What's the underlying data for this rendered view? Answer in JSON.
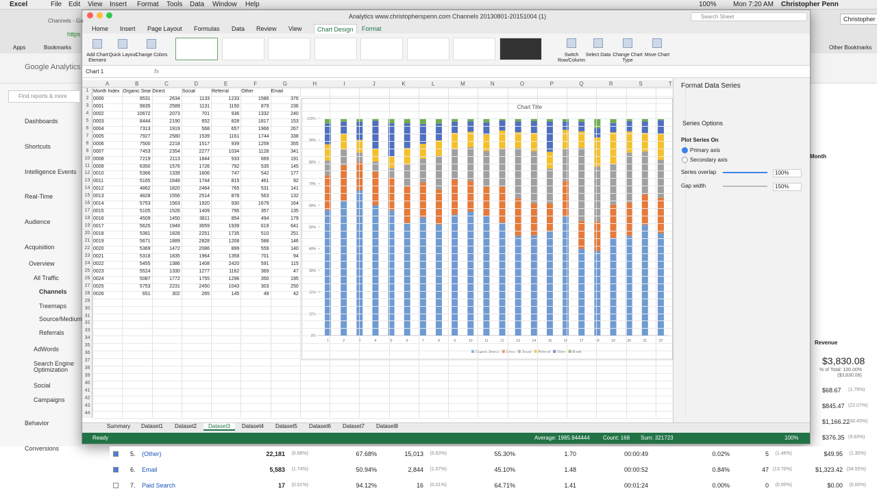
{
  "menubar": {
    "items": [
      "Excel",
      "File",
      "Edit",
      "View",
      "Insert",
      "Format",
      "Tools",
      "Data",
      "Window",
      "Help"
    ],
    "battery": "100%",
    "clock": "Mon 7:20 AM",
    "user": "Christopher Penn"
  },
  "browser": {
    "tab": "Channels - Go",
    "url": "https",
    "bookmarks": [
      "Apps",
      "Bookmarks"
    ],
    "other_bookmarks": "Other Bookmarks",
    "profile": "Christopher"
  },
  "ga": {
    "logo": "Google Analytics",
    "search": "Find reports & more",
    "nav": [
      "Dashboards",
      "Shortcuts",
      "Intelligence Events",
      "Real-Time",
      "Audience",
      "Acquisition",
      "Overview",
      "All Traffic",
      "Channels",
      "Treemaps",
      "Source/Medium",
      "Referrals",
      "AdWords",
      "Search Engine Optimization",
      "Social",
      "Campaigns",
      "Behavior",
      "Conversions"
    ],
    "month": "Month",
    "revenue_header": "Revenue",
    "revenue_total": "$3,830.08",
    "revenue_share": "% of Total: 100.00%",
    "revenue_sub": "($3,830.08)",
    "revenue_list": [
      [
        "$68.67",
        "(1.79%)"
      ],
      [
        "$845.47",
        "(22.07%)"
      ],
      [
        "$1,166.22",
        "(30.45%)"
      ],
      [
        "$376.35",
        "(9.83%)"
      ]
    ],
    "rows": [
      [
        "5.",
        "(Other)",
        "22,181",
        "(6.88%)",
        "67.68%",
        "15,013",
        "(5.63%)",
        "55.30%",
        "1.70",
        "00:00:49",
        "0.02%",
        "5",
        "(1.46%)",
        "$49.95",
        "(1.30%)"
      ],
      [
        "6.",
        "Email",
        "5,583",
        "(1.74%)",
        "50.94%",
        "2,844",
        "(1.07%)",
        "45.10%",
        "1.48",
        "00:00:52",
        "0.84%",
        "47",
        "(13.70%)",
        "$1,323.42",
        "(34.55%)"
      ],
      [
        "7.",
        "Paid Search",
        "17",
        "(0.01%)",
        "94.12%",
        "16",
        "(0.01%)",
        "64.71%",
        "1.41",
        "00:01:24",
        "0.00%",
        "0",
        "(0.00%)",
        "$0.00",
        "(0.00%)"
      ]
    ]
  },
  "excel": {
    "title": "Analytics www.christopherspenn.com Channels 20130801-20151004 (1)",
    "search": "Search Sheet",
    "tabs": [
      "Home",
      "Insert",
      "Page Layout",
      "Formulas",
      "Data",
      "Review",
      "View",
      "Chart Design",
      "Format"
    ],
    "ribbon_left": [
      "Add Chart Element",
      "Quick Layout",
      "Change Colors"
    ],
    "ribbon_right": [
      "Switch Row/Column",
      "Select Data",
      "Change Chart Type",
      "Move Chart"
    ],
    "name_box": "Chart 1",
    "fx": "fx",
    "columns": [
      "A",
      "B",
      "C",
      "D",
      "E",
      "F",
      "G",
      "H",
      "I",
      "J",
      "K",
      "L",
      "M",
      "N",
      "O",
      "P",
      "Q",
      "R",
      "S",
      "T"
    ],
    "row_numbers": [
      1,
      2,
      3,
      4,
      5,
      6,
      7,
      8,
      9,
      10,
      11,
      12,
      13,
      14,
      15,
      16,
      17,
      18,
      19,
      20,
      21,
      22,
      23,
      24,
      25,
      26,
      27,
      28,
      29,
      30,
      31,
      32,
      33,
      34,
      35,
      36,
      37,
      38,
      39,
      40,
      41,
      42,
      43,
      44
    ],
    "table": {
      "header": [
        "Month Index",
        "Organic Sear",
        "Direct",
        "Social",
        "Referral",
        "Other",
        "Email"
      ],
      "rows": [
        [
          "0000",
          9531,
          2634,
          1133,
          1233,
          1586,
          376
        ],
        [
          "0001",
          9835,
          2589,
          1131,
          1150,
          879,
          236
        ],
        [
          "0002",
          10672,
          2073,
          701,
          936,
          1332,
          240
        ],
        [
          "0003",
          8444,
          2190,
          652,
          828,
          1817,
          153
        ],
        [
          "0004",
          7313,
          1919,
          568,
          657,
          1966,
          267
        ],
        [
          "0005",
          7927,
          2580,
          1539,
          1161,
          1744,
          338
        ],
        [
          "0006",
          7500,
          2218,
          1517,
          939,
          1259,
          355
        ],
        [
          "0007",
          7453,
          2354,
          2277,
          1034,
          1128,
          341
        ],
        [
          "0008",
          7219,
          2113,
          1844,
          933,
          669,
          191
        ],
        [
          "0009",
          6350,
          1576,
          1726,
          792,
          535,
          145
        ],
        [
          "0010",
          5366,
          1339,
          1606,
          747,
          542,
          177
        ],
        [
          "0011",
          5165,
          1648,
          1744,
          815,
          461,
          92
        ],
        [
          "0012",
          4862,
          1820,
          2464,
          765,
          531,
          141
        ],
        [
          "0013",
          4828,
          1556,
          2514,
          878,
          563,
          132
        ],
        [
          "0014",
          5753,
          1563,
          1920,
          930,
          1679,
          164
        ],
        [
          "0015",
          5105,
          1526,
          1409,
          795,
          357,
          135
        ],
        [
          "0016",
          4509,
          1450,
          3811,
          854,
          494,
          179
        ],
        [
          "0017",
          5625,
          1949,
          3659,
          1939,
          619,
          641
        ],
        [
          "0018",
          5381,
          1828,
          2251,
          1735,
          510,
          251
        ],
        [
          "0019",
          5671,
          1889,
          2828,
          1208,
          588,
          146
        ],
        [
          "0020",
          5369,
          1472,
          2086,
          899,
          559,
          140
        ],
        [
          "0021",
          5318,
          1835,
          1964,
          1358,
          701,
          94
        ],
        [
          "0022",
          5455,
          1386,
          1408,
          2420,
          591,
          115
        ],
        [
          "0023",
          5524,
          1330,
          1277,
          1162,
          369,
          47
        ],
        [
          "0024",
          5087,
          1772,
          1755,
          1296,
          350,
          195
        ],
        [
          "0025",
          5753,
          2231,
          2450,
          1043,
          303,
          250
        ],
        [
          "0026",
          651,
          302,
          265,
          145,
          49,
          42
        ]
      ]
    },
    "sheets": [
      "Summary",
      "Dataset1",
      "Dataset2",
      "Dataset3",
      "Dataset4",
      "Dataset5",
      "Dataset6",
      "Dataset7",
      "Dataset8"
    ],
    "active_sheet": "Dataset3",
    "status": {
      "ready": "Ready",
      "average": "Average: 1985.944444",
      "count": "Count: 168",
      "sum": "Sum: 321723",
      "zoom": "100%"
    },
    "pane": {
      "title": "Format Data Series",
      "section": "Series Options",
      "plot_on": "Plot Series On",
      "primary": "Primary axis",
      "secondary": "Secondary axis",
      "overlap_label": "Series overlap",
      "overlap_value": "100%",
      "gap_label": "Gap width",
      "gap_value": "150%"
    }
  },
  "chart_data": {
    "type": "bar",
    "stack": "percent",
    "title": "Chart Title",
    "categories": [
      "1",
      "2",
      "3",
      "4",
      "5",
      "6",
      "7",
      "8",
      "9",
      "10",
      "11",
      "12",
      "13",
      "14",
      "15",
      "16",
      "17",
      "18",
      "19",
      "20",
      "21",
      "22"
    ],
    "ylim": [
      0,
      100
    ],
    "yticks": [
      {
        "value": 0,
        "label": "0%"
      },
      {
        "value": 10,
        "label": "10%"
      },
      {
        "value": 20,
        "label": "20%"
      },
      {
        "value": 30,
        "label": "30%"
      },
      {
        "value": 40,
        "label": "40%"
      },
      {
        "value": 50,
        "label": "50%"
      },
      {
        "value": 60,
        "label": "60%"
      },
      {
        "value": 70,
        "label": "70%"
      },
      {
        "value": 80,
        "label": "80%"
      },
      {
        "value": 90,
        "label": "90%"
      },
      {
        "value": 100,
        "label": "100%"
      }
    ],
    "series": [
      {
        "name": "Organic Search",
        "color": "#6f9bd4",
        "values": [
          9531,
          9835,
          10672,
          8444,
          7313,
          7927,
          7500,
          7453,
          7219,
          6350,
          5366,
          5165,
          4862,
          4828,
          5753,
          5105,
          4509,
          5625,
          5381,
          5671,
          5369,
          5318
        ]
      },
      {
        "name": "Direct",
        "color": "#e57a3a",
        "values": [
          2634,
          2589,
          2073,
          2190,
          1919,
          2580,
          2218,
          2354,
          2113,
          1576,
          1339,
          1648,
          1820,
          1556,
          1563,
          1526,
          1450,
          1949,
          1828,
          1889,
          1472,
          1835
        ]
      },
      {
        "name": "Social",
        "color": "#a0a0a0",
        "values": [
          1133,
          1131,
          701,
          652,
          568,
          1539,
          1517,
          2277,
          1844,
          1726,
          1606,
          1744,
          2464,
          2514,
          1920,
          1409,
          3811,
          3659,
          2251,
          2828,
          2086,
          1964
        ]
      },
      {
        "name": "Referral",
        "color": "#f5c02a",
        "values": [
          1233,
          1150,
          936,
          828,
          657,
          1161,
          939,
          1034,
          933,
          792,
          747,
          815,
          765,
          878,
          930,
          795,
          854,
          1939,
          1735,
          1208,
          899,
          1358
        ]
      },
      {
        "name": "Other",
        "color": "#4f6fbf",
        "values": [
          1586,
          879,
          1332,
          1817,
          1966,
          1744,
          1259,
          1128,
          669,
          535,
          542,
          461,
          531,
          563,
          1679,
          357,
          494,
          619,
          510,
          588,
          559,
          701
        ]
      },
      {
        "name": "Email",
        "color": "#72ad4e",
        "values": [
          376,
          236,
          240,
          153,
          267,
          338,
          355,
          341,
          191,
          145,
          177,
          92,
          141,
          132,
          164,
          135,
          179,
          641,
          251,
          146,
          140,
          94
        ]
      }
    ],
    "grid": false,
    "legend": "bottom"
  }
}
